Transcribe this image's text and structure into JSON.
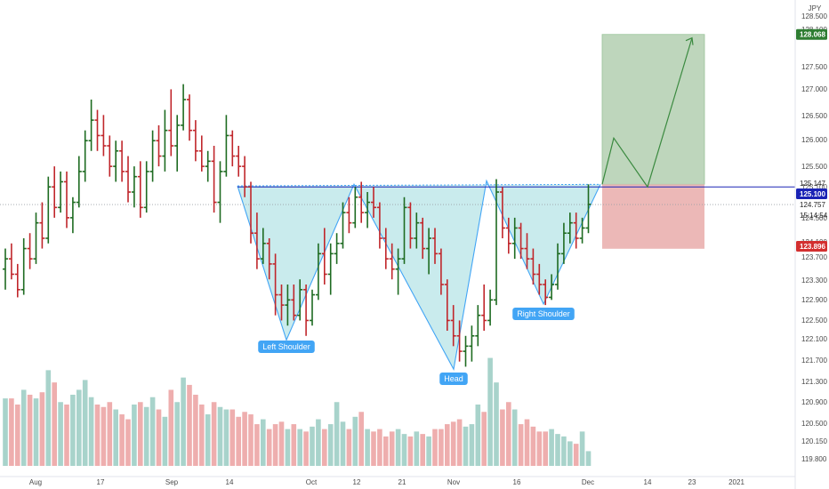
{
  "chart_data": {
    "type": "ohlc",
    "currency": "JPY",
    "price_axis": {
      "min": 119.6,
      "max": 128.6,
      "ticks": [
        "128.500",
        "128.100",
        "127.500",
        "127.000",
        "126.500",
        "126.000",
        "125.500",
        "125.100",
        "124.500",
        "124.100",
        "123.700",
        "123.300",
        "122.900",
        "122.500",
        "122.100",
        "121.700",
        "121.300",
        "120.900",
        "120.500",
        "120.150",
        "119.800"
      ]
    },
    "time_axis": {
      "ticks": [
        "Aug",
        "17",
        "Sep",
        "14",
        "Oct",
        "12",
        "21",
        "Nov",
        "16",
        "Dec",
        "14",
        "23",
        "2021"
      ]
    },
    "price_tags": [
      {
        "name": "target",
        "value": "128.068",
        "color": "#2e7d32"
      },
      {
        "name": "last-high",
        "value": "125.147",
        "color": "plain"
      },
      {
        "name": "neckline",
        "value": "125.100",
        "color": "#1a23b5"
      },
      {
        "name": "last-price",
        "value": "124.757",
        "color": "plain"
      },
      {
        "name": "countdown",
        "value": "15:14:54",
        "color": "plain"
      },
      {
        "name": "stop",
        "value": "123.896",
        "color": "#d32f2f"
      }
    ],
    "pattern_labels": {
      "left_shoulder": "Left Shoulder",
      "head": "Head",
      "right_shoulder": "Right Shoulder"
    },
    "levels": {
      "neckline": 125.1,
      "target": 128.068,
      "stop": 123.896,
      "entry": 125.15
    },
    "pattern_points": {
      "left_shoulder_start": 125.12,
      "left_shoulder_low": 122.12,
      "shoulder_peak_1": 125.15,
      "head_low": 121.55,
      "shoulder_peak_2": 125.22,
      "right_shoulder_low": 122.82,
      "right_shoulder_end": 125.15
    },
    "projection": [
      125.15,
      126.05,
      125.1,
      128.0
    ],
    "colors": {
      "up": "#1e6b21",
      "down": "#c0262b",
      "volume_up": "#a8d3cb",
      "volume_down": "#eeaeae",
      "pattern_fill": "#bfe7ea",
      "pattern_line": "#42a5f5",
      "neckline": "#1a23b5",
      "target_zone": "#bed6bc",
      "stop_zone": "#ecb8b7",
      "projection_line": "#3b8a40",
      "label_bg": "#42a5f5"
    },
    "bars": [
      {
        "o": 123.5,
        "h": 123.9,
        "l": 123.1,
        "c": 123.7
      },
      {
        "o": 123.7,
        "h": 124.0,
        "l": 123.3,
        "c": 123.4
      },
      {
        "o": 123.4,
        "h": 123.6,
        "l": 122.95,
        "c": 123.1
      },
      {
        "o": 123.1,
        "h": 124.1,
        "l": 123.0,
        "c": 123.9
      },
      {
        "o": 123.9,
        "h": 124.2,
        "l": 123.5,
        "c": 123.7
      },
      {
        "o": 123.7,
        "h": 124.6,
        "l": 123.6,
        "c": 124.4
      },
      {
        "o": 124.4,
        "h": 124.8,
        "l": 123.9,
        "c": 124.1
      },
      {
        "o": 124.1,
        "h": 125.3,
        "l": 124.0,
        "c": 125.1
      },
      {
        "o": 125.1,
        "h": 125.5,
        "l": 124.5,
        "c": 124.7
      },
      {
        "o": 124.7,
        "h": 125.4,
        "l": 124.6,
        "c": 125.2
      },
      {
        "o": 125.2,
        "h": 125.4,
        "l": 124.3,
        "c": 124.5
      },
      {
        "o": 124.5,
        "h": 124.9,
        "l": 124.2,
        "c": 124.8
      },
      {
        "o": 124.8,
        "h": 125.7,
        "l": 124.7,
        "c": 125.4
      },
      {
        "o": 125.4,
        "h": 126.2,
        "l": 125.2,
        "c": 126.0
      },
      {
        "o": 126.0,
        "h": 126.8,
        "l": 125.8,
        "c": 126.4
      },
      {
        "o": 126.4,
        "h": 126.6,
        "l": 125.8,
        "c": 126.1
      },
      {
        "o": 126.1,
        "h": 126.5,
        "l": 125.7,
        "c": 125.9
      },
      {
        "o": 125.9,
        "h": 126.1,
        "l": 125.3,
        "c": 125.5
      },
      {
        "o": 125.5,
        "h": 126.0,
        "l": 125.2,
        "c": 125.8
      },
      {
        "o": 125.8,
        "h": 126.0,
        "l": 125.2,
        "c": 125.4
      },
      {
        "o": 125.4,
        "h": 125.7,
        "l": 124.8,
        "c": 125.0
      },
      {
        "o": 125.0,
        "h": 125.5,
        "l": 124.7,
        "c": 125.3
      },
      {
        "o": 125.3,
        "h": 125.6,
        "l": 124.5,
        "c": 124.7
      },
      {
        "o": 124.7,
        "h": 125.6,
        "l": 124.6,
        "c": 125.4
      },
      {
        "o": 125.4,
        "h": 126.2,
        "l": 125.2,
        "c": 126.0
      },
      {
        "o": 126.0,
        "h": 126.3,
        "l": 125.5,
        "c": 125.7
      },
      {
        "o": 125.7,
        "h": 126.6,
        "l": 125.4,
        "c": 126.2
      },
      {
        "o": 126.2,
        "h": 127.0,
        "l": 125.7,
        "c": 125.9
      },
      {
        "o": 125.9,
        "h": 126.5,
        "l": 125.4,
        "c": 126.3
      },
      {
        "o": 126.3,
        "h": 127.1,
        "l": 126.2,
        "c": 126.8
      },
      {
        "o": 126.8,
        "h": 126.9,
        "l": 126.0,
        "c": 126.2
      },
      {
        "o": 126.2,
        "h": 126.4,
        "l": 125.6,
        "c": 125.8
      },
      {
        "o": 125.8,
        "h": 126.1,
        "l": 125.4,
        "c": 125.5
      },
      {
        "o": 125.5,
        "h": 125.8,
        "l": 125.2,
        "c": 125.6
      },
      {
        "o": 125.6,
        "h": 125.9,
        "l": 124.6,
        "c": 124.8
      },
      {
        "o": 124.8,
        "h": 125.6,
        "l": 124.4,
        "c": 125.4
      },
      {
        "o": 125.4,
        "h": 126.5,
        "l": 125.3,
        "c": 126.1
      },
      {
        "o": 126.1,
        "h": 126.2,
        "l": 125.5,
        "c": 125.7
      },
      {
        "o": 125.7,
        "h": 125.9,
        "l": 125.3,
        "c": 125.5
      },
      {
        "o": 125.5,
        "h": 125.7,
        "l": 124.9,
        "c": 125.1
      },
      {
        "o": 125.1,
        "h": 125.2,
        "l": 124.0,
        "c": 124.2
      },
      {
        "o": 124.2,
        "h": 124.6,
        "l": 123.5,
        "c": 123.7
      },
      {
        "o": 123.7,
        "h": 124.3,
        "l": 123.6,
        "c": 124.0
      },
      {
        "o": 124.0,
        "h": 124.1,
        "l": 123.3,
        "c": 123.6
      },
      {
        "o": 123.6,
        "h": 123.8,
        "l": 122.6,
        "c": 123.0
      },
      {
        "o": 123.0,
        "h": 123.2,
        "l": 122.5,
        "c": 122.8
      },
      {
        "o": 122.8,
        "h": 123.2,
        "l": 122.4,
        "c": 122.9
      },
      {
        "o": 122.9,
        "h": 123.2,
        "l": 122.5,
        "c": 122.6
      },
      {
        "o": 122.6,
        "h": 123.3,
        "l": 122.5,
        "c": 123.1
      },
      {
        "o": 123.1,
        "h": 123.2,
        "l": 122.2,
        "c": 122.5
      },
      {
        "o": 122.5,
        "h": 123.1,
        "l": 122.4,
        "c": 123.0
      },
      {
        "o": 123.0,
        "h": 124.0,
        "l": 122.9,
        "c": 123.8
      },
      {
        "o": 123.8,
        "h": 124.3,
        "l": 123.2,
        "c": 123.4
      },
      {
        "o": 123.4,
        "h": 124.0,
        "l": 123.0,
        "c": 123.8
      },
      {
        "o": 123.8,
        "h": 124.2,
        "l": 123.6,
        "c": 124.0
      },
      {
        "o": 124.0,
        "h": 124.8,
        "l": 123.9,
        "c": 124.6
      },
      {
        "o": 124.6,
        "h": 124.9,
        "l": 124.2,
        "c": 124.4
      },
      {
        "o": 124.4,
        "h": 125.1,
        "l": 124.3,
        "c": 124.9
      },
      {
        "o": 124.9,
        "h": 125.2,
        "l": 124.4,
        "c": 124.6
      },
      {
        "o": 124.6,
        "h": 125.0,
        "l": 124.3,
        "c": 124.8
      },
      {
        "o": 124.8,
        "h": 125.1,
        "l": 124.5,
        "c": 124.7
      },
      {
        "o": 124.7,
        "h": 124.8,
        "l": 123.9,
        "c": 124.1
      },
      {
        "o": 124.1,
        "h": 124.3,
        "l": 123.5,
        "c": 123.7
      },
      {
        "o": 123.7,
        "h": 124.0,
        "l": 123.3,
        "c": 123.5
      },
      {
        "o": 123.5,
        "h": 123.9,
        "l": 123.0,
        "c": 123.7
      },
      {
        "o": 123.7,
        "h": 124.9,
        "l": 123.6,
        "c": 124.7
      },
      {
        "o": 124.7,
        "h": 124.8,
        "l": 123.9,
        "c": 124.1
      },
      {
        "o": 124.1,
        "h": 124.6,
        "l": 123.9,
        "c": 124.4
      },
      {
        "o": 124.4,
        "h": 124.5,
        "l": 123.7,
        "c": 123.9
      },
      {
        "o": 123.9,
        "h": 124.3,
        "l": 123.4,
        "c": 124.1
      },
      {
        "o": 124.1,
        "h": 124.3,
        "l": 123.6,
        "c": 123.8
      },
      {
        "o": 123.8,
        "h": 123.9,
        "l": 123.0,
        "c": 123.2
      },
      {
        "o": 123.2,
        "h": 123.3,
        "l": 122.3,
        "c": 122.5
      },
      {
        "o": 122.5,
        "h": 122.8,
        "l": 122.0,
        "c": 122.2
      },
      {
        "o": 122.2,
        "h": 122.5,
        "l": 121.7,
        "c": 121.9
      },
      {
        "o": 121.9,
        "h": 122.2,
        "l": 121.6,
        "c": 122.0
      },
      {
        "o": 122.0,
        "h": 122.4,
        "l": 121.7,
        "c": 122.2
      },
      {
        "o": 122.2,
        "h": 122.8,
        "l": 122.0,
        "c": 122.6
      },
      {
        "o": 122.6,
        "h": 123.2,
        "l": 122.3,
        "c": 122.5
      },
      {
        "o": 122.5,
        "h": 123.1,
        "l": 122.4,
        "c": 122.9
      },
      {
        "o": 122.9,
        "h": 125.25,
        "l": 122.8,
        "c": 125.0
      },
      {
        "o": 125.0,
        "h": 125.1,
        "l": 124.1,
        "c": 124.3
      },
      {
        "o": 124.3,
        "h": 124.5,
        "l": 123.8,
        "c": 124.0
      },
      {
        "o": 124.0,
        "h": 124.5,
        "l": 123.7,
        "c": 124.3
      },
      {
        "o": 124.3,
        "h": 124.4,
        "l": 123.7,
        "c": 123.9
      },
      {
        "o": 123.9,
        "h": 124.2,
        "l": 123.5,
        "c": 123.7
      },
      {
        "o": 123.7,
        "h": 123.9,
        "l": 123.2,
        "c": 123.4
      },
      {
        "o": 123.4,
        "h": 123.6,
        "l": 123.0,
        "c": 123.2
      },
      {
        "o": 123.2,
        "h": 123.3,
        "l": 122.8,
        "c": 122.95
      },
      {
        "o": 122.95,
        "h": 123.4,
        "l": 122.9,
        "c": 123.2
      },
      {
        "o": 123.2,
        "h": 124.0,
        "l": 123.1,
        "c": 123.8
      },
      {
        "o": 123.8,
        "h": 124.4,
        "l": 123.6,
        "c": 124.2
      },
      {
        "o": 124.2,
        "h": 124.6,
        "l": 124.0,
        "c": 124.4
      },
      {
        "o": 124.4,
        "h": 124.6,
        "l": 123.9,
        "c": 124.1
      },
      {
        "o": 124.1,
        "h": 124.5,
        "l": 124.0,
        "c": 124.3
      },
      {
        "o": 124.3,
        "h": 125.15,
        "l": 124.2,
        "c": 124.76
      }
    ],
    "volume": [
      0.55,
      0.55,
      0.5,
      0.62,
      0.58,
      0.55,
      0.6,
      0.78,
      0.68,
      0.52,
      0.5,
      0.58,
      0.62,
      0.7,
      0.56,
      0.5,
      0.48,
      0.52,
      0.46,
      0.42,
      0.38,
      0.5,
      0.52,
      0.48,
      0.56,
      0.46,
      0.4,
      0.62,
      0.52,
      0.72,
      0.66,
      0.58,
      0.5,
      0.42,
      0.52,
      0.48,
      0.46,
      0.46,
      0.4,
      0.44,
      0.42,
      0.34,
      0.38,
      0.3,
      0.34,
      0.36,
      0.3,
      0.34,
      0.3,
      0.28,
      0.32,
      0.38,
      0.3,
      0.34,
      0.52,
      0.36,
      0.3,
      0.4,
      0.44,
      0.3,
      0.28,
      0.3,
      0.24,
      0.28,
      0.3,
      0.26,
      0.24,
      0.28,
      0.26,
      0.24,
      0.3,
      0.3,
      0.34,
      0.36,
      0.38,
      0.32,
      0.34,
      0.5,
      0.44,
      0.88,
      0.68,
      0.46,
      0.52,
      0.46,
      0.34,
      0.38,
      0.32,
      0.28,
      0.28,
      0.3,
      0.26,
      0.24,
      0.2,
      0.18,
      0.28,
      0.12
    ]
  }
}
